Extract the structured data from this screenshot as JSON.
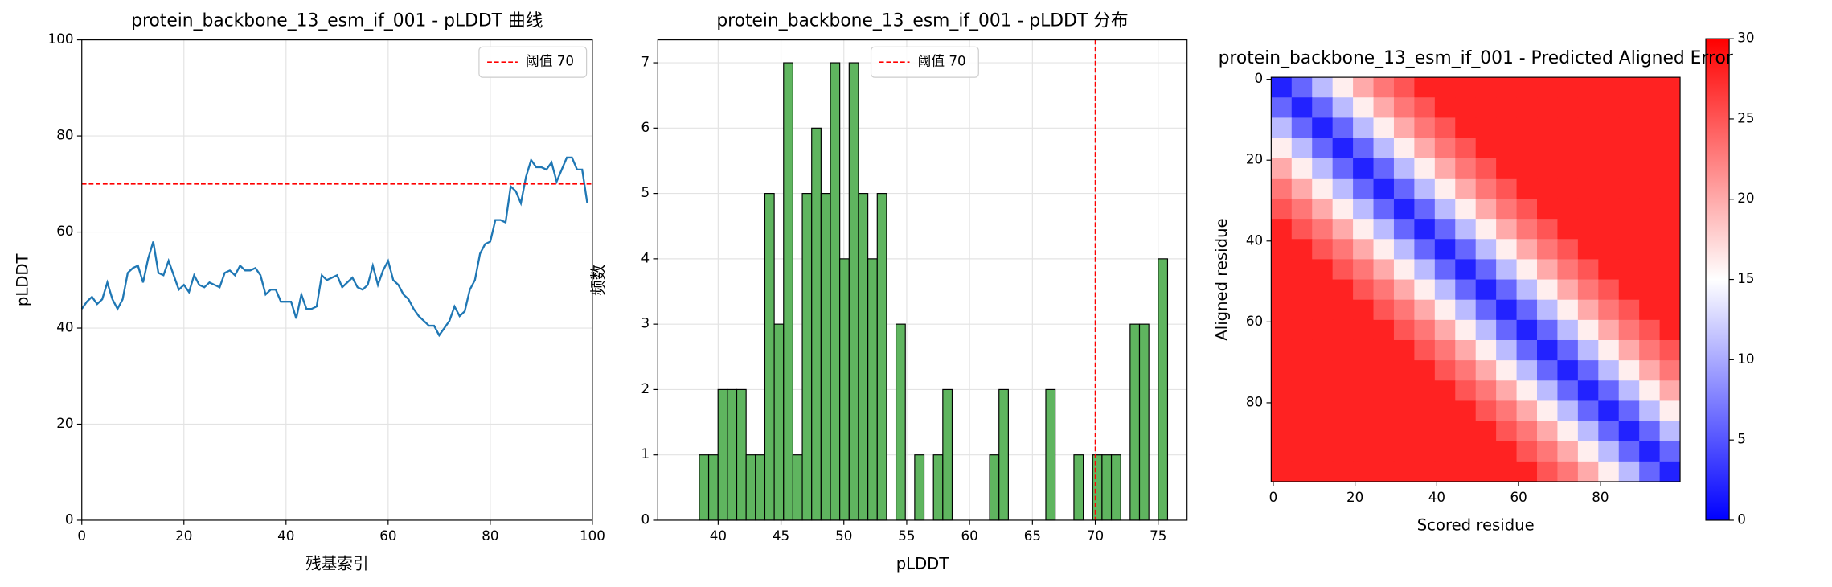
{
  "chart_data": [
    {
      "type": "line",
      "title": "protein_backbone_13_esm_if_001 - pLDDT 曲线",
      "xlabel": "残基索引",
      "ylabel": "pLDDT",
      "x": [
        0,
        1,
        2,
        3,
        4,
        5,
        6,
        7,
        8,
        9,
        10,
        11,
        12,
        13,
        14,
        15,
        16,
        17,
        18,
        19,
        20,
        21,
        22,
        23,
        24,
        25,
        26,
        27,
        28,
        29,
        30,
        31,
        32,
        33,
        34,
        35,
        36,
        37,
        38,
        39,
        40,
        41,
        42,
        43,
        44,
        45,
        46,
        47,
        48,
        49,
        50,
        51,
        52,
        53,
        54,
        55,
        56,
        57,
        58,
        59,
        60,
        61,
        62,
        63,
        64,
        65,
        66,
        67,
        68,
        69,
        70,
        71,
        72,
        73,
        74,
        75,
        76,
        77,
        78,
        79,
        80,
        81,
        82,
        83,
        84,
        85,
        86,
        87,
        88,
        89,
        90,
        91,
        92,
        93,
        94,
        95,
        96,
        97,
        98,
        99
      ],
      "values": [
        44,
        45.5,
        46.5,
        45,
        46,
        49.5,
        46,
        44,
        46,
        51.5,
        52.5,
        53,
        49.5,
        54.5,
        58,
        51.5,
        51,
        54,
        51,
        48,
        49,
        47.5,
        51,
        49,
        48.5,
        49.5,
        49,
        48.5,
        51.5,
        52,
        51,
        53,
        52,
        52,
        52.5,
        51,
        47,
        48,
        48,
        45.5,
        45.5,
        45.5,
        42,
        47,
        44,
        44,
        44.5,
        51,
        50,
        50.5,
        51,
        48.5,
        49.5,
        50.5,
        48.5,
        48,
        49,
        53,
        49,
        52,
        54,
        50,
        49,
        47,
        46,
        44,
        42.5,
        41.5,
        40.5,
        40.5,
        38.5,
        40,
        41.5,
        44.5,
        42.5,
        43.5,
        48,
        50,
        55.5,
        57.5,
        58,
        62.5,
        62.5,
        62,
        69.5,
        68.5,
        66,
        71.5,
        75,
        73.5,
        73.5,
        73,
        74.5,
        70.5,
        73,
        75.5,
        75.5,
        73,
        73,
        66
      ],
      "color": "#1f77b4",
      "threshold": 70,
      "threshold_label": "阈值 70",
      "threshold_color": "#ff0000",
      "xlim": [
        0,
        100
      ],
      "xticks": [
        0,
        20,
        40,
        60,
        80,
        100
      ],
      "ylim": [
        0,
        100
      ],
      "yticks": [
        0,
        20,
        40,
        60,
        80,
        100
      ],
      "grid": true,
      "legend": "upper right"
    },
    {
      "type": "histogram",
      "title": "protein_backbone_13_esm_if_001 - pLDDT 分布",
      "xlabel": "pLDDT",
      "ylabel": "频数",
      "bins": [
        38.5,
        39.245,
        39.99,
        40.735,
        41.48,
        42.225,
        42.97,
        43.715,
        44.46,
        45.205,
        45.95,
        46.695,
        47.44,
        48.185,
        48.93,
        49.675,
        50.42,
        51.165,
        51.91,
        52.655,
        53.4,
        54.145,
        54.89,
        55.635,
        56.38,
        57.125,
        57.87,
        58.615,
        59.36,
        60.105,
        60.85,
        61.595,
        62.34,
        63.085,
        63.83,
        64.575,
        65.32,
        66.065,
        66.81,
        67.555,
        68.3,
        69.045,
        69.79,
        70.535,
        71.28,
        72.025,
        72.77,
        73.515,
        74.26,
        75.005,
        75.75
      ],
      "values": [
        1,
        1,
        2,
        2,
        2,
        1,
        1,
        5,
        3,
        7,
        1,
        5,
        6,
        5,
        7,
        4,
        7,
        5,
        4,
        5,
        0,
        3,
        0,
        1,
        0,
        1,
        2,
        0,
        0,
        0,
        0,
        1,
        2,
        0,
        0,
        0,
        0,
        2,
        0,
        0,
        1,
        0,
        1,
        1,
        1,
        0,
        3,
        3,
        0,
        4
      ],
      "color": "#5fb55f",
      "edgecolor": "#000000",
      "threshold": 70,
      "threshold_label": "阈值 70",
      "threshold_color": "#ff0000",
      "xlim": [
        35.2,
        77.3
      ],
      "xticks": [
        40,
        45,
        50,
        55,
        60,
        65,
        70,
        75
      ],
      "ylim": [
        0,
        7.35
      ],
      "yticks": [
        0,
        1,
        2,
        3,
        4,
        5,
        6,
        7
      ],
      "grid": true,
      "legend": "upper center"
    },
    {
      "type": "heatmap",
      "title": "protein_backbone_13_esm_if_001 - Predicted Aligned Error",
      "xlabel": "Scored residue",
      "ylabel": "Aligned residue",
      "colormap": "bwr",
      "colors": [
        "#0000ff",
        "#ffffff",
        "#ff0000"
      ],
      "xlim": [
        -0.5,
        99.5
      ],
      "xticks": [
        0,
        20,
        40,
        60,
        80
      ],
      "ylim": [
        99.5,
        -0.5
      ],
      "yticks": [
        0,
        20,
        40,
        60,
        80
      ],
      "clim": [
        0,
        30
      ],
      "cticks": [
        0,
        5,
        10,
        15,
        20,
        25,
        30
      ],
      "matrix": [
        [
          2,
          6,
          11,
          16,
          20,
          23,
          25,
          28,
          28,
          28,
          28,
          28,
          28,
          28,
          28,
          28,
          28,
          28,
          28,
          28
        ],
        [
          6,
          2,
          6,
          11,
          16,
          20,
          23,
          25,
          28,
          28,
          28,
          28,
          28,
          28,
          28,
          28,
          28,
          28,
          28,
          28
        ],
        [
          11,
          6,
          2,
          6,
          11,
          16,
          20,
          23,
          25,
          28,
          28,
          28,
          28,
          28,
          28,
          28,
          28,
          28,
          28,
          28
        ],
        [
          16,
          11,
          6,
          2,
          6,
          11,
          16,
          20,
          23,
          25,
          28,
          28,
          28,
          28,
          28,
          28,
          28,
          28,
          28,
          28
        ],
        [
          20,
          16,
          11,
          6,
          2,
          6,
          11,
          16,
          20,
          23,
          25,
          28,
          28,
          28,
          28,
          28,
          28,
          28,
          28,
          28
        ],
        [
          23,
          20,
          16,
          11,
          6,
          2,
          6,
          11,
          16,
          20,
          23,
          25,
          28,
          28,
          28,
          28,
          28,
          28,
          28,
          28
        ],
        [
          25,
          23,
          20,
          16,
          11,
          6,
          2,
          6,
          11,
          16,
          20,
          23,
          25,
          28,
          28,
          28,
          28,
          28,
          28,
          28
        ],
        [
          28,
          25,
          23,
          20,
          16,
          11,
          6,
          2,
          6,
          11,
          16,
          20,
          23,
          25,
          28,
          28,
          28,
          28,
          28,
          28
        ],
        [
          28,
          28,
          25,
          23,
          20,
          16,
          11,
          6,
          2,
          6,
          11,
          16,
          20,
          23,
          25,
          28,
          28,
          28,
          28,
          28
        ],
        [
          28,
          28,
          28,
          25,
          23,
          20,
          16,
          11,
          6,
          2,
          6,
          11,
          16,
          20,
          23,
          25,
          28,
          28,
          28,
          28
        ],
        [
          28,
          28,
          28,
          28,
          25,
          23,
          20,
          16,
          11,
          6,
          2,
          6,
          11,
          16,
          20,
          23,
          25,
          28,
          28,
          28
        ],
        [
          28,
          28,
          28,
          28,
          28,
          25,
          23,
          20,
          16,
          11,
          6,
          2,
          6,
          11,
          16,
          20,
          23,
          25,
          28,
          28
        ],
        [
          28,
          28,
          28,
          28,
          28,
          28,
          25,
          23,
          20,
          16,
          11,
          6,
          2,
          6,
          11,
          16,
          20,
          23,
          25,
          28
        ],
        [
          28,
          28,
          28,
          28,
          28,
          28,
          28,
          25,
          23,
          20,
          16,
          11,
          6,
          2,
          6,
          11,
          16,
          20,
          23,
          25
        ],
        [
          28,
          28,
          28,
          28,
          28,
          28,
          28,
          28,
          25,
          23,
          20,
          16,
          11,
          6,
          2,
          6,
          11,
          16,
          20,
          23
        ],
        [
          28,
          28,
          28,
          28,
          28,
          28,
          28,
          28,
          28,
          25,
          23,
          20,
          16,
          11,
          6,
          2,
          6,
          11,
          16,
          20
        ],
        [
          28,
          28,
          28,
          28,
          28,
          28,
          28,
          28,
          28,
          28,
          25,
          23,
          20,
          16,
          11,
          6,
          2,
          6,
          11,
          16
        ],
        [
          28,
          28,
          28,
          28,
          28,
          28,
          28,
          28,
          28,
          28,
          28,
          25,
          23,
          20,
          16,
          11,
          6,
          2,
          6,
          11
        ],
        [
          28,
          28,
          28,
          28,
          28,
          28,
          28,
          28,
          28,
          28,
          28,
          28,
          25,
          23,
          20,
          16,
          11,
          6,
          2,
          6
        ],
        [
          28,
          28,
          28,
          28,
          28,
          28,
          28,
          28,
          28,
          28,
          28,
          28,
          28,
          25,
          23,
          20,
          16,
          11,
          6,
          2
        ]
      ]
    }
  ]
}
